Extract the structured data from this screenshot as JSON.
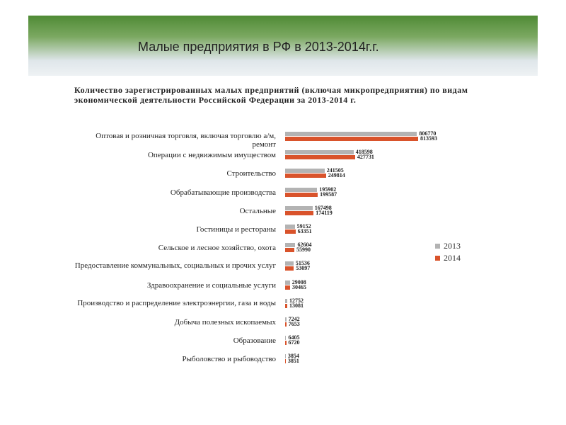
{
  "header": {
    "title": "Малые предприятия в РФ в 2013-2014г.г."
  },
  "chart_data": {
    "type": "bar",
    "title": "Количество зарегистрированных малых предприятий (включая микропредприятия) по видам экономической деятельности Российской Федерации за 2013-2014 г.",
    "categories": [
      "Оптовая и розничная торговля, включая торговлю а/м, ремонт",
      "Операции с недвижимым имуществом",
      "Строительство",
      "Обрабатывающие производства",
      "Остальные",
      "Гостиницы и рестораны",
      "Сельское и лесное хозяйство, охота",
      "Предоставление коммунальных, социальных и прочих услуг",
      "Здравоохранение и социальные услуги",
      "Производство и распределение электроэнергии, газа и воды",
      "Добыча полезных ископаемых",
      "Образование",
      "Рыболовство и рыбоводство"
    ],
    "series": [
      {
        "name": "2013",
        "color": "#b3b3b3",
        "values": [
          806770,
          418598,
          241505,
          195902,
          167498,
          59152,
          62604,
          51536,
          29008,
          12752,
          7242,
          6405,
          3854
        ]
      },
      {
        "name": "2014",
        "color": "#d9532b",
        "values": [
          813593,
          427731,
          249814,
          199587,
          174119,
          63351,
          55990,
          53097,
          30465,
          13081,
          7653,
          6720,
          3851
        ]
      }
    ],
    "orientation": "horizontal",
    "legend": "right"
  }
}
